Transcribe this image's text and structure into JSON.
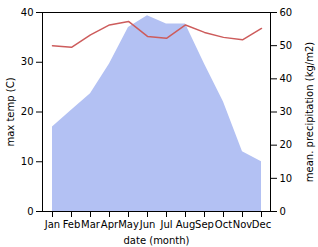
{
  "chart_data": {
    "type": "line",
    "x_label": "date (month)",
    "y_label": "max temp (C)",
    "y2_label": "mean. precipitation (kg/m2)",
    "categories": [
      "Jan",
      "Feb",
      "Mar",
      "Apr",
      "May",
      "Jun",
      "Jul",
      "Aug",
      "Sep",
      "Oct",
      "Nov",
      "Dec"
    ],
    "series": [
      {
        "type": "area",
        "axis": "y2",
        "color": "#b3c1f3",
        "values": [
          25.5,
          30.5,
          35.5,
          44.5,
          55.5,
          59,
          56.5,
          56.5,
          44.5,
          33,
          18,
          15
        ]
      },
      {
        "type": "line",
        "color": "#cd5c5c",
        "values": [
          33.3,
          33,
          35.5,
          37.5,
          38.2,
          35.2,
          34.8,
          37.5,
          36,
          35,
          34.5,
          36.8
        ]
      }
    ],
    "ylim": [
      0,
      40
    ],
    "yticks": [
      0,
      10,
      20,
      30,
      40
    ],
    "y2lim": [
      0,
      60
    ],
    "y2ticks": [
      0,
      10,
      20,
      30,
      40,
      50,
      60
    ]
  }
}
